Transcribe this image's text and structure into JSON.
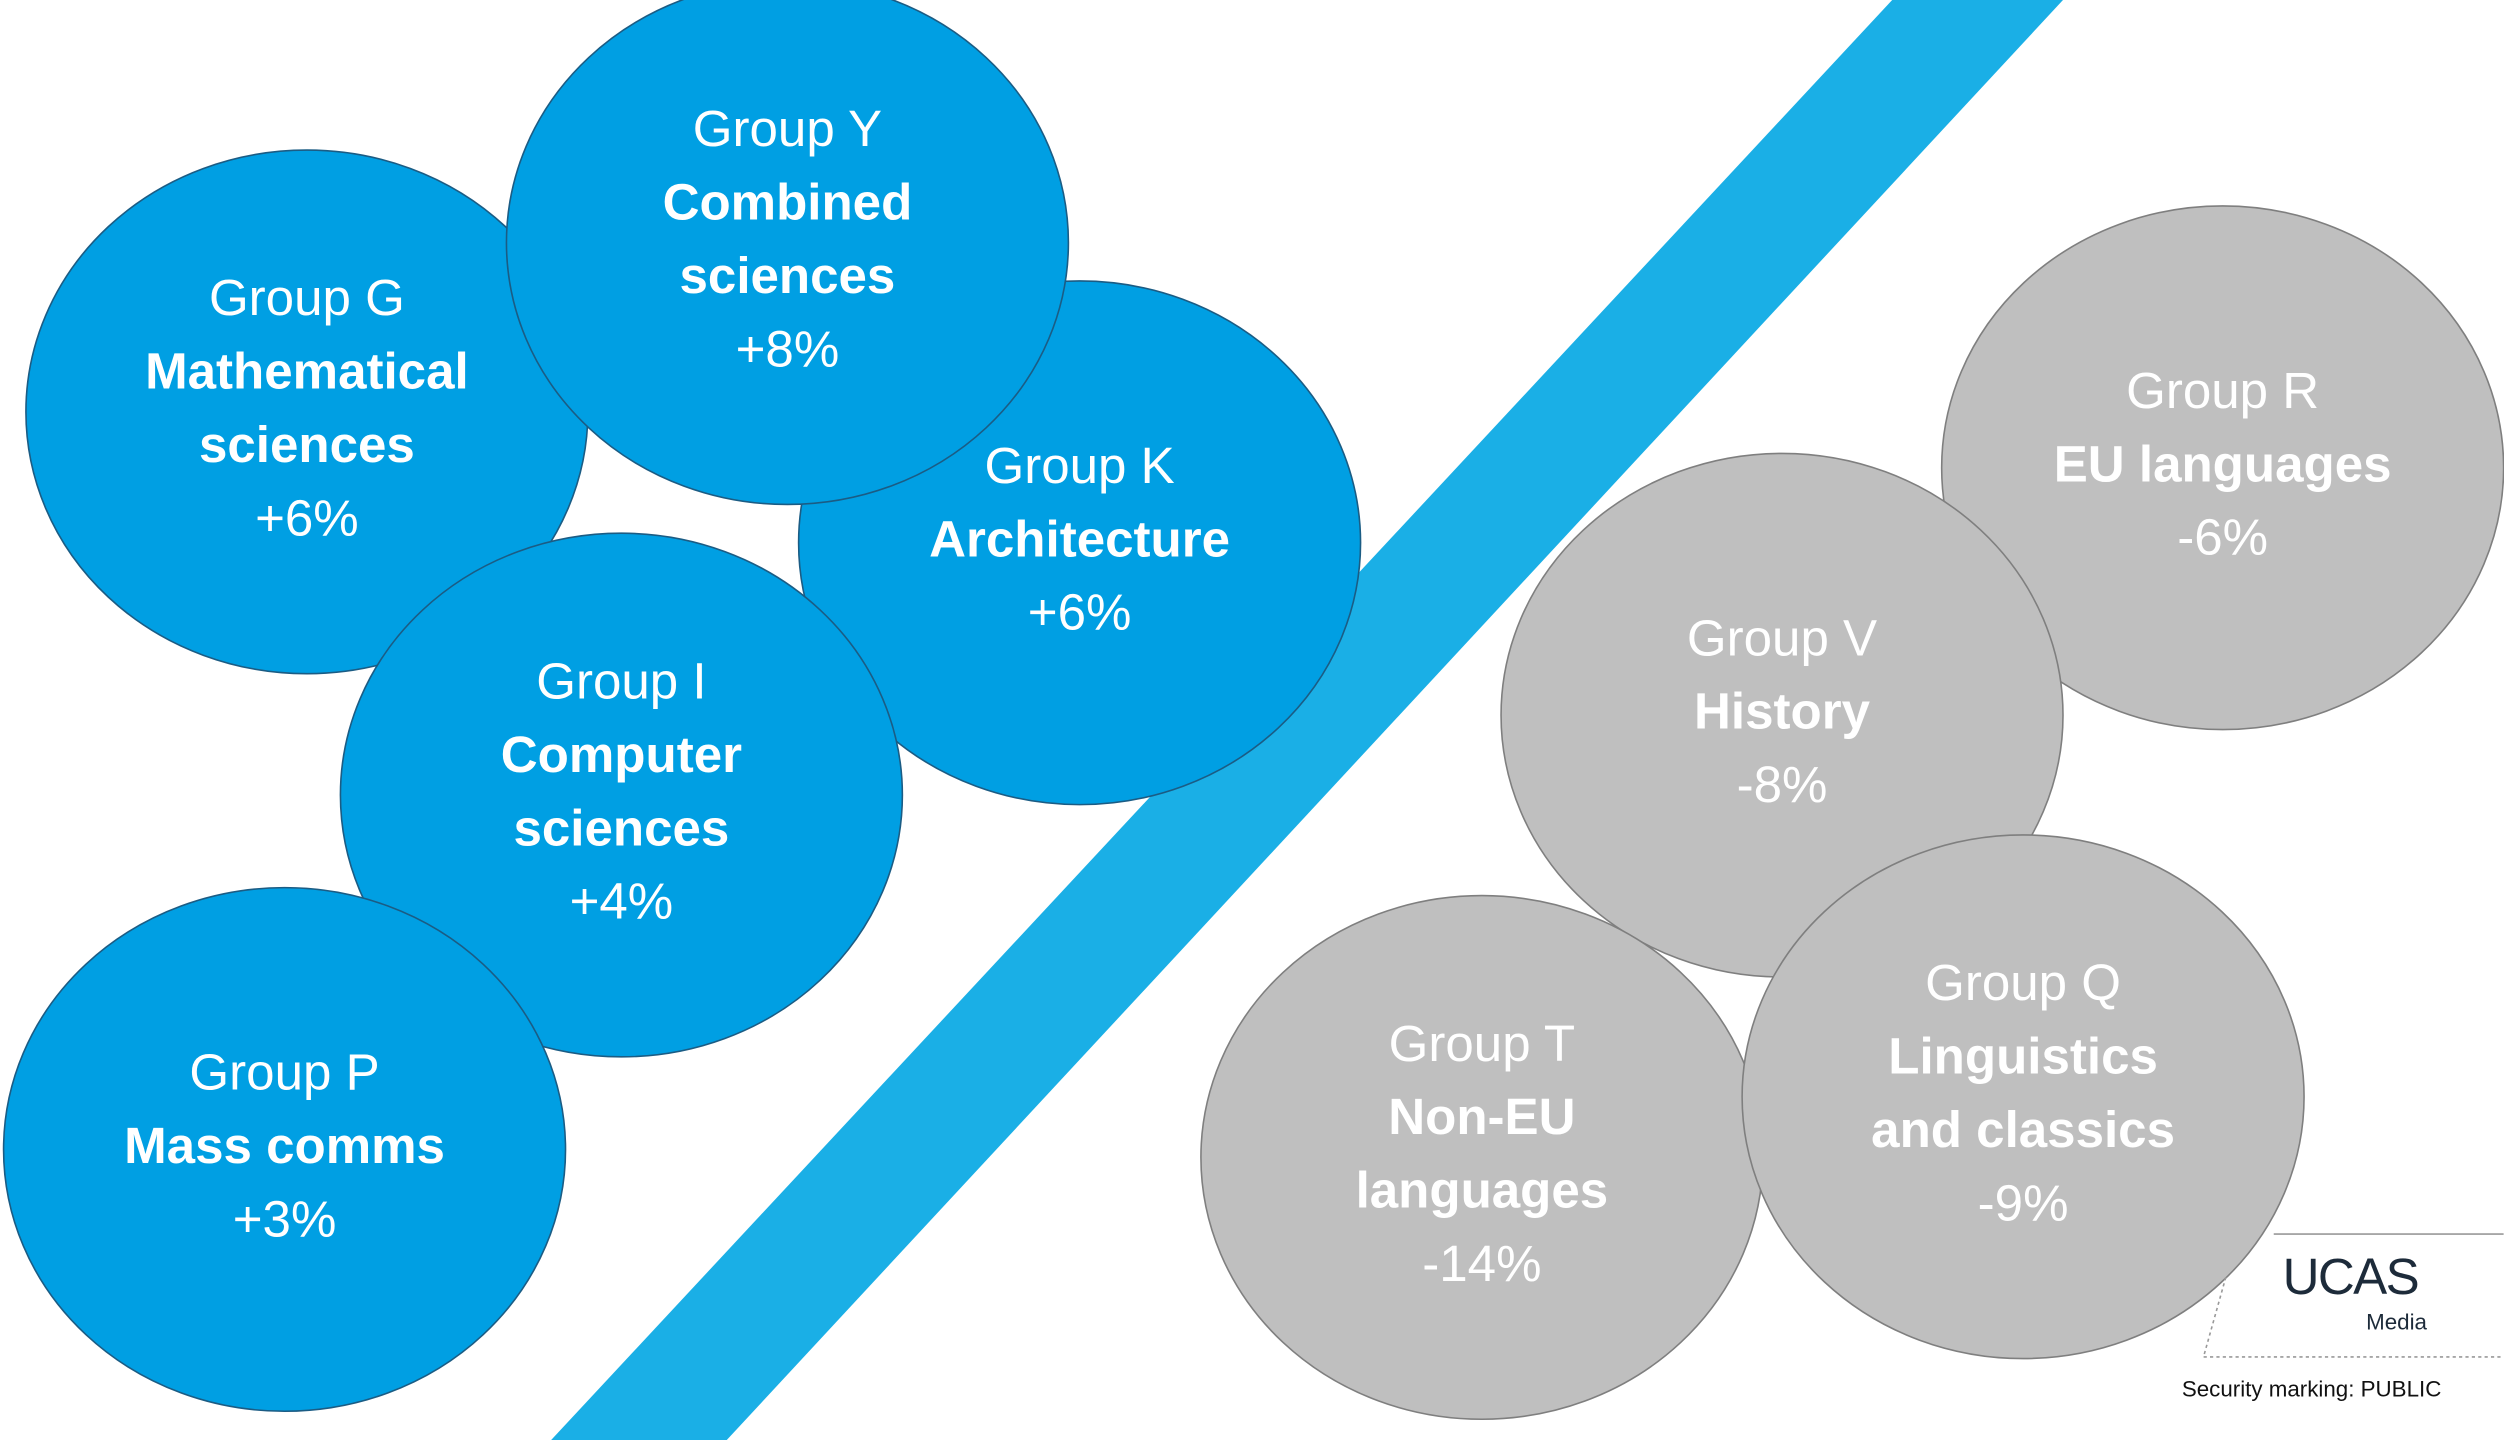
{
  "groups": [
    {
      "group": "Group K",
      "subject": [
        "Architecture"
      ],
      "change": "+6%",
      "tone": "up"
    },
    {
      "group": "Group G",
      "subject": [
        "Mathematical",
        "sciences"
      ],
      "change": "+6%",
      "tone": "up"
    },
    {
      "group": "Group I",
      "subject": [
        "Computer",
        "sciences"
      ],
      "change": "+4%",
      "tone": "up"
    },
    {
      "group": "Group Y",
      "subject": [
        "Combined",
        "sciences"
      ],
      "change": "+8%",
      "tone": "up"
    },
    {
      "group": "Group P",
      "subject": [
        "Mass comms"
      ],
      "change": "+3%",
      "tone": "up"
    },
    {
      "group": "Group R",
      "subject": [
        "EU languages"
      ],
      "change": "-6%",
      "tone": "down"
    },
    {
      "group": "Group V",
      "subject": [
        "History"
      ],
      "change": "-8%",
      "tone": "down"
    },
    {
      "group": "Group T",
      "subject": [
        "Non-EU",
        "languages"
      ],
      "change": "-14%",
      "tone": "down"
    },
    {
      "group": "Group Q",
      "subject": [
        "Linguistics",
        "and classics"
      ],
      "change": "-9%",
      "tone": "down"
    }
  ],
  "logo": {
    "name": "UCAS",
    "sub": "Media"
  },
  "footer": "Security marking: PUBLIC"
}
